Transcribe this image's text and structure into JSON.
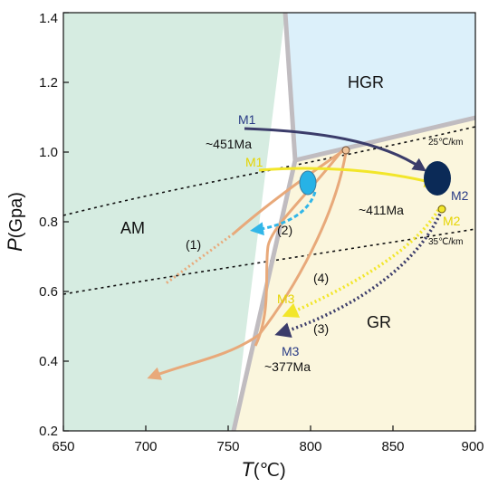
{
  "chart_data": {
    "type": "diagram",
    "xlabel": "T",
    "xlabel_unit": "(℃)",
    "ylabel": "P",
    "ylabel_unit": "(Gpa)",
    "xlim": [
      650,
      900
    ],
    "ylim": [
      0.2,
      1.4
    ],
    "x_ticks": [
      "650",
      "700",
      "750",
      "800",
      "850",
      "900"
    ],
    "y_ticks": [
      "0.2",
      "0.4",
      "0.6",
      "0.8",
      "1.0",
      "1.2",
      "1.4"
    ],
    "fields": [
      {
        "label": "AM",
        "color": "#d6ece1"
      },
      {
        "label": "HGR",
        "color": "#dcf0fa"
      },
      {
        "label": "GR",
        "color": "#fbf6dd"
      }
    ],
    "boundary_color": "#c0bcc0",
    "geotherms": [
      {
        "label": "25℃/km"
      },
      {
        "label": "35℃/km"
      }
    ],
    "stage_labels": {
      "m1_dark": "M1",
      "m1_age": "~451Ma",
      "m1_yellow": "M1",
      "m2_dark": "M2",
      "m2_age": "~411Ma",
      "m2_yellow": "M2",
      "m3_yellow": "M3",
      "m3_dark": "M3",
      "m3_age": "~377Ma"
    },
    "path_labels": [
      "(1)",
      "(2)",
      "(3)",
      "(4)"
    ],
    "colors": {
      "dark_path": "#3b3c6a",
      "yellow_path": "#f2e62a",
      "orange_path": "#e8a97a",
      "cyan_path": "#31b6e8",
      "dark_blob": "#0b2a57",
      "cyan_blob": "#27b2e6"
    }
  }
}
